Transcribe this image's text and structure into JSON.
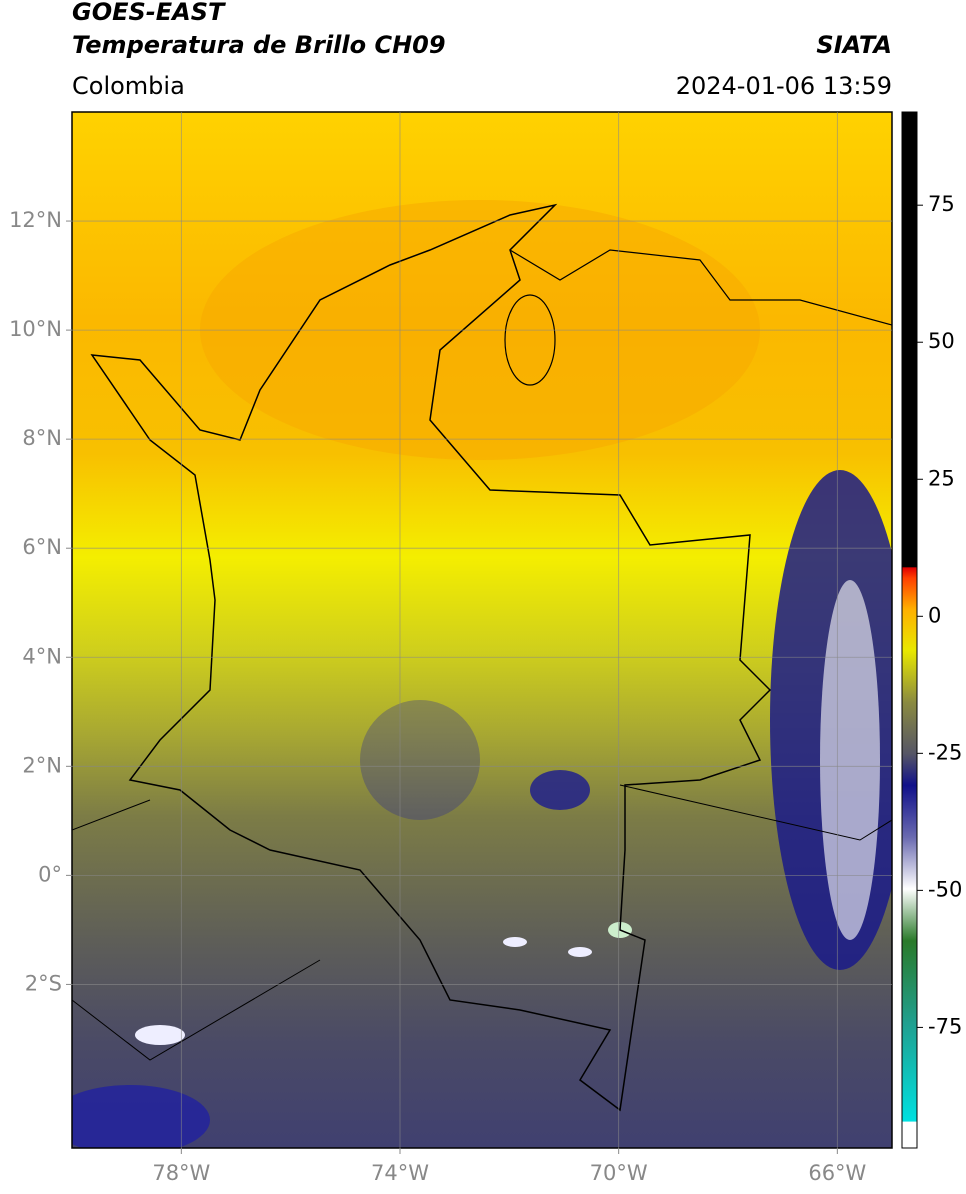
{
  "header": {
    "title": "GOES-EAST",
    "subtitle": "Temperatura de Brillo CH09",
    "source": "SIATA",
    "region": "Colombia",
    "datetime": "2024-01-06 13:59"
  },
  "map": {
    "lonlim": [
      -80,
      -65
    ],
    "latlim": [
      -5,
      14
    ],
    "grid": true,
    "lon_ticks": [
      {
        "value": -78,
        "label": "78°W"
      },
      {
        "value": -74,
        "label": "74°W"
      },
      {
        "value": -70,
        "label": "70°W"
      },
      {
        "value": -66,
        "label": "66°W"
      }
    ],
    "lat_ticks": [
      {
        "value": 12,
        "label": "12°N"
      },
      {
        "value": 10,
        "label": "10°N"
      },
      {
        "value": 8,
        "label": "8°N"
      },
      {
        "value": 6,
        "label": "6°N"
      },
      {
        "value": 4,
        "label": "4°N"
      },
      {
        "value": 2,
        "label": "2°N"
      },
      {
        "value": 0,
        "label": "0°"
      },
      {
        "value": -2,
        "label": "2°S"
      }
    ]
  },
  "colorbar": {
    "lim": [
      -97,
      92
    ],
    "ticks": [
      75,
      50,
      25,
      0,
      -25,
      -50,
      -75
    ]
  }
}
